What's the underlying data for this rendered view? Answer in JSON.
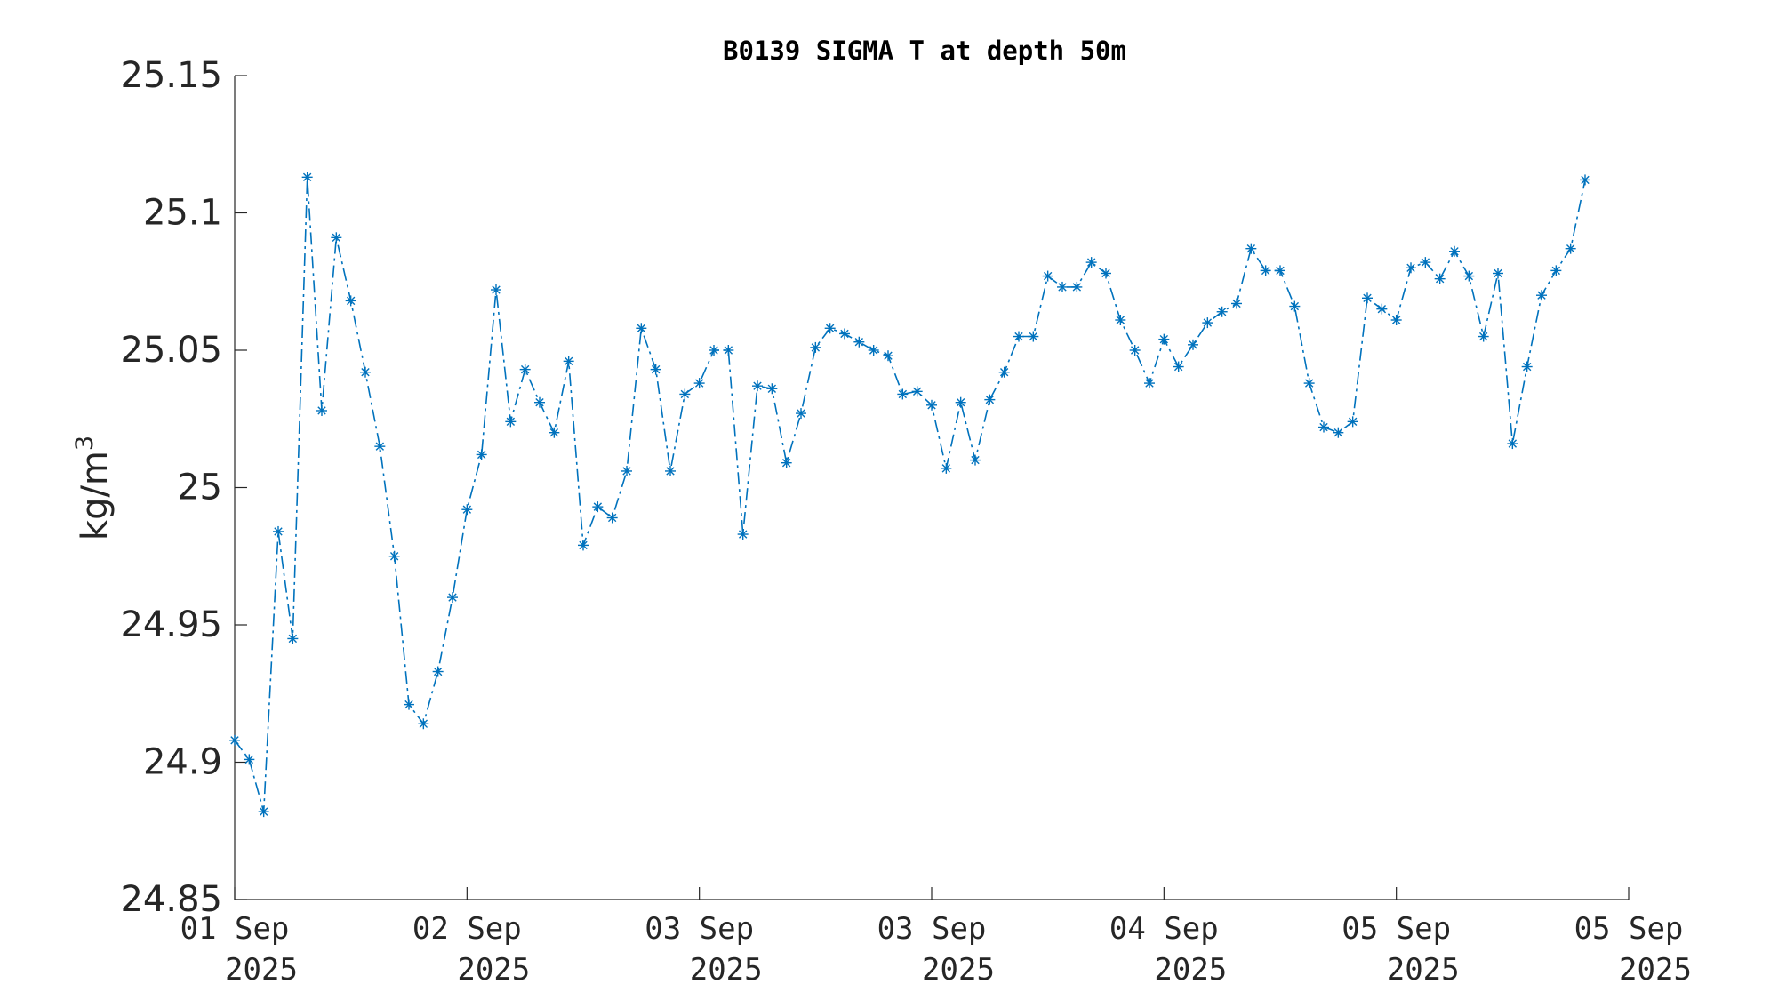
{
  "chart_data": {
    "type": "line",
    "title": "B0139 SIGMA T at depth 50m",
    "ylabel": "kg/m",
    "ylabel_superscript": "3",
    "ylim": [
      24.85,
      25.15
    ],
    "yticks": [
      "24.85",
      "24.9",
      "24.95",
      "25",
      "25.05",
      "25.1",
      "25.15"
    ],
    "xlim": [
      0,
      96
    ],
    "xticks": [
      {
        "pos": 0,
        "line1": "01 Sep",
        "line2": "2025"
      },
      {
        "pos": 16,
        "line1": "02 Sep",
        "line2": "2025"
      },
      {
        "pos": 32,
        "line1": "03 Sep",
        "line2": "2025"
      },
      {
        "pos": 48,
        "line1": "03 Sep",
        "line2": "2025"
      },
      {
        "pos": 64,
        "line1": "04 Sep",
        "line2": "2025"
      },
      {
        "pos": 80,
        "line1": "05 Sep",
        "line2": "2025"
      },
      {
        "pos": 96,
        "line1": "05 Sep",
        "line2": "2025"
      }
    ],
    "grid": false,
    "line_style": "dash-dot",
    "marker": "asterisk",
    "color": "#0072bd",
    "series": [
      {
        "values": [
          24.908,
          24.901,
          24.882,
          24.984,
          24.945,
          25.113,
          25.028,
          25.091,
          25.068,
          25.042,
          25.015,
          24.975,
          24.921,
          24.914,
          24.933,
          24.96,
          24.992,
          25.012,
          25.072,
          25.024,
          25.043,
          25.031,
          25.02,
          25.046,
          24.979,
          24.993,
          24.989,
          25.006,
          25.058,
          25.043,
          25.006,
          25.034,
          25.038,
          25.05,
          25.05,
          24.983,
          25.037,
          25.036,
          25.009,
          25.027,
          25.051,
          25.058,
          25.056,
          25.053,
          25.05,
          25.048,
          25.034,
          25.035,
          25.03,
          25.007,
          25.031,
          25.01,
          25.032,
          25.042,
          25.055,
          25.055,
          25.077,
          25.073,
          25.073,
          25.082,
          25.078,
          25.061,
          25.05,
          25.038,
          25.054,
          25.044,
          25.052,
          25.06,
          25.064,
          25.067,
          25.087,
          25.079,
          25.079,
          25.066,
          25.038,
          25.022,
          25.02,
          25.024,
          25.069,
          25.065,
          25.061,
          25.08,
          25.082,
          25.076,
          25.086,
          25.077,
          25.055,
          25.078,
          25.016,
          25.044,
          25.07,
          25.079,
          25.087,
          25.112
        ]
      }
    ]
  }
}
